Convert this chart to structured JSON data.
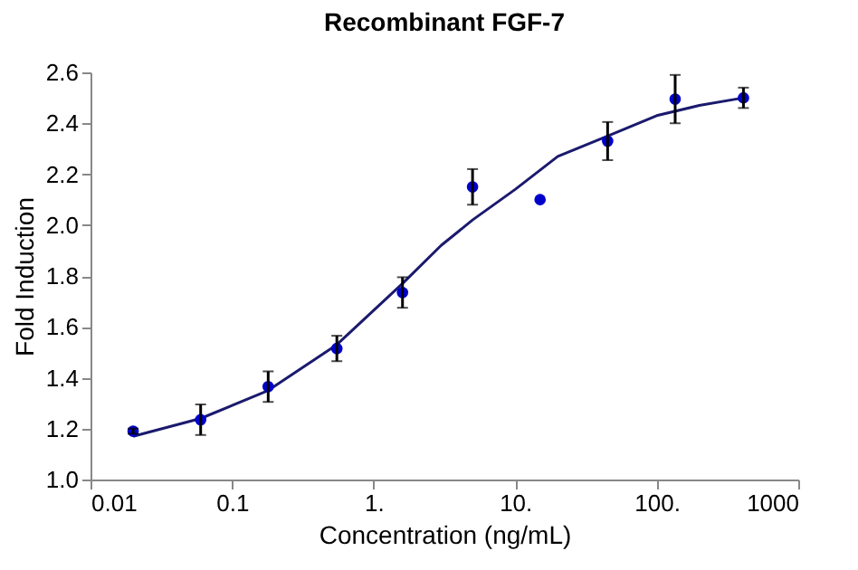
{
  "chart_data": {
    "type": "scatter",
    "title": "Recombinant FGF-7",
    "xlabel": "Concentration (ng/mL)",
    "ylabel": "Fold Induction",
    "log": "x",
    "xlim": [
      0.01,
      1000
    ],
    "xticks": [
      {
        "value": 0.01,
        "label": "0.01"
      },
      {
        "value": 0.1,
        "label": "0.1"
      },
      {
        "value": 1,
        "label": "1."
      },
      {
        "value": 10,
        "label": "10."
      },
      {
        "value": 100,
        "label": "100."
      },
      {
        "value": 1000,
        "label": "1000"
      }
    ],
    "ylim": [
      1.0,
      2.6
    ],
    "yticks": [
      {
        "value": 1.0,
        "label": "1.0"
      },
      {
        "value": 1.2,
        "label": "1.2"
      },
      {
        "value": 1.4,
        "label": "1.4"
      },
      {
        "value": 1.6,
        "label": "1.6"
      },
      {
        "value": 1.8,
        "label": "1.8"
      },
      {
        "value": 2.0,
        "label": "2.0"
      },
      {
        "value": 2.2,
        "label": "2.2"
      },
      {
        "value": 2.4,
        "label": "2.4"
      },
      {
        "value": 2.6,
        "label": "2.6"
      }
    ],
    "grid": false,
    "series": [
      {
        "color": "#0000cc",
        "marker": "circle",
        "x": [
          0.02,
          0.06,
          0.18,
          0.55,
          1.6,
          5,
          15,
          45,
          135,
          410
        ],
        "values": [
          1.19,
          1.235,
          1.365,
          1.515,
          1.735,
          2.15,
          2.1,
          2.33,
          2.495,
          2.5
        ],
        "errors": [
          0.01,
          0.06,
          0.06,
          0.05,
          0.06,
          0.07,
          null,
          0.075,
          0.095,
          0.04
        ]
      },
      {
        "type": "line",
        "color": "#1a1a6e",
        "x": [
          0.02,
          0.06,
          0.18,
          0.55,
          1.6,
          3,
          5,
          10,
          20,
          45,
          100,
          200,
          410
        ],
        "values": [
          1.17,
          1.24,
          1.35,
          1.53,
          1.77,
          1.92,
          2.02,
          2.14,
          2.27,
          2.35,
          2.43,
          2.47,
          2.5
        ]
      }
    ]
  }
}
